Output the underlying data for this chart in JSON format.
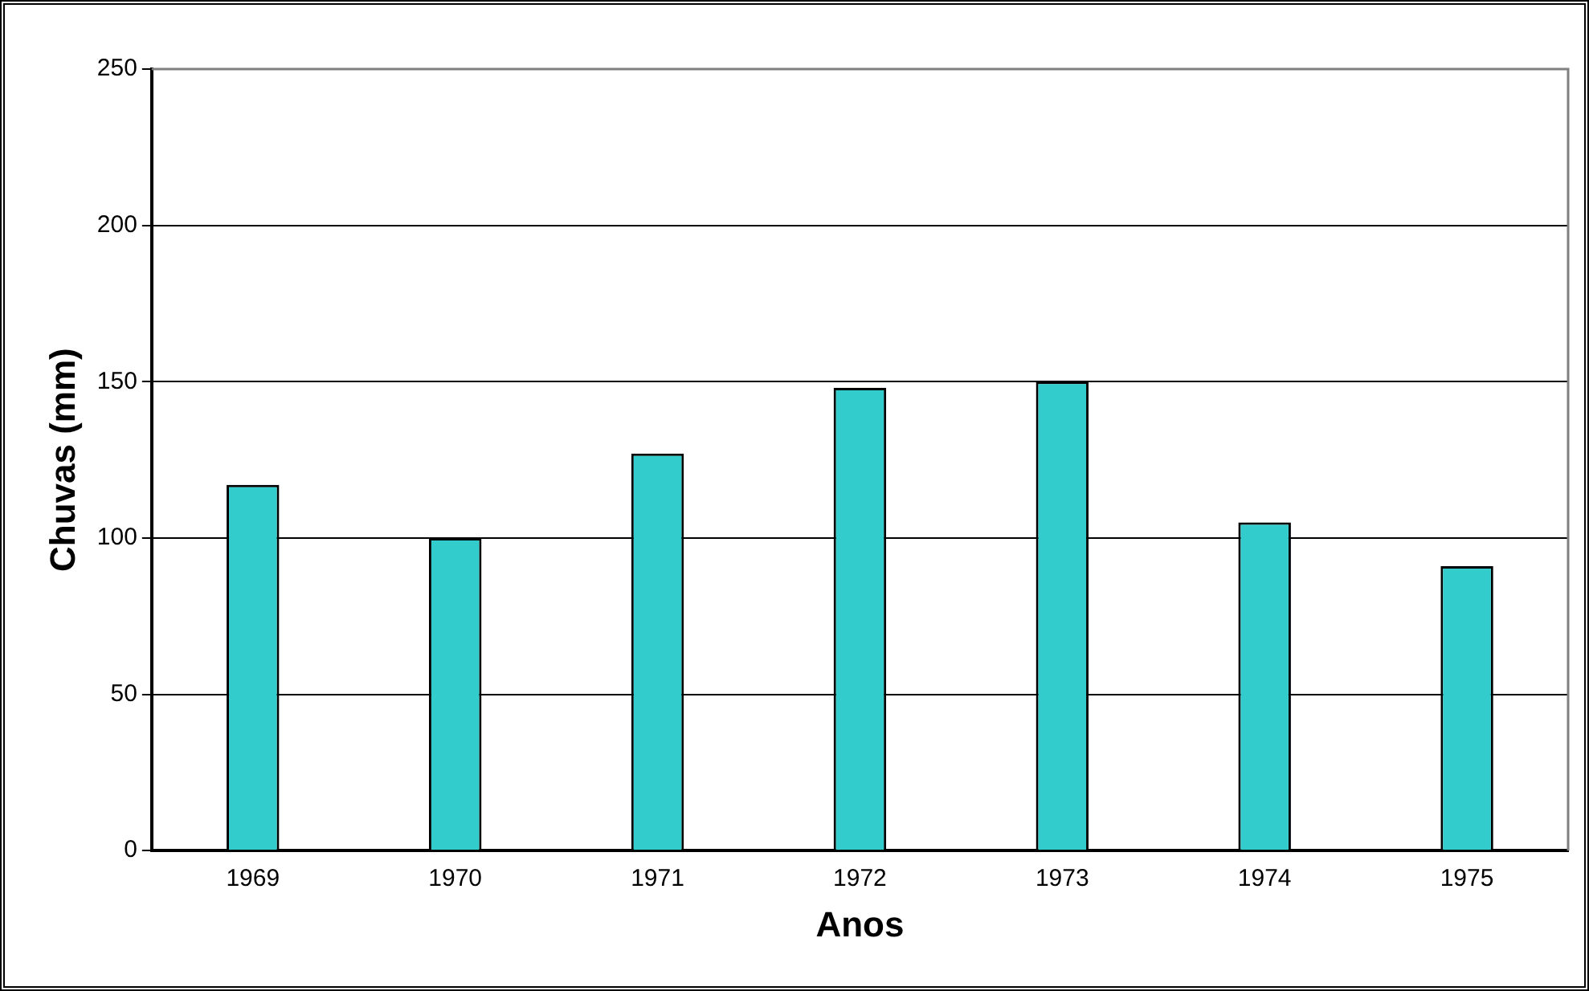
{
  "chart_data": {
    "type": "bar",
    "xlabel": "Anos",
    "ylabel": "Chuvas (mm)",
    "categories": [
      "1969",
      "1970",
      "1971",
      "1972",
      "1973",
      "1974",
      "1975"
    ],
    "values": [
      117,
      100,
      127,
      148,
      150,
      105,
      91
    ],
    "color": "#33cccc",
    "ylim": [
      0,
      250
    ],
    "yticks": [
      0,
      50,
      100,
      150,
      200,
      250
    ],
    "grid": "y",
    "legend": false
  }
}
